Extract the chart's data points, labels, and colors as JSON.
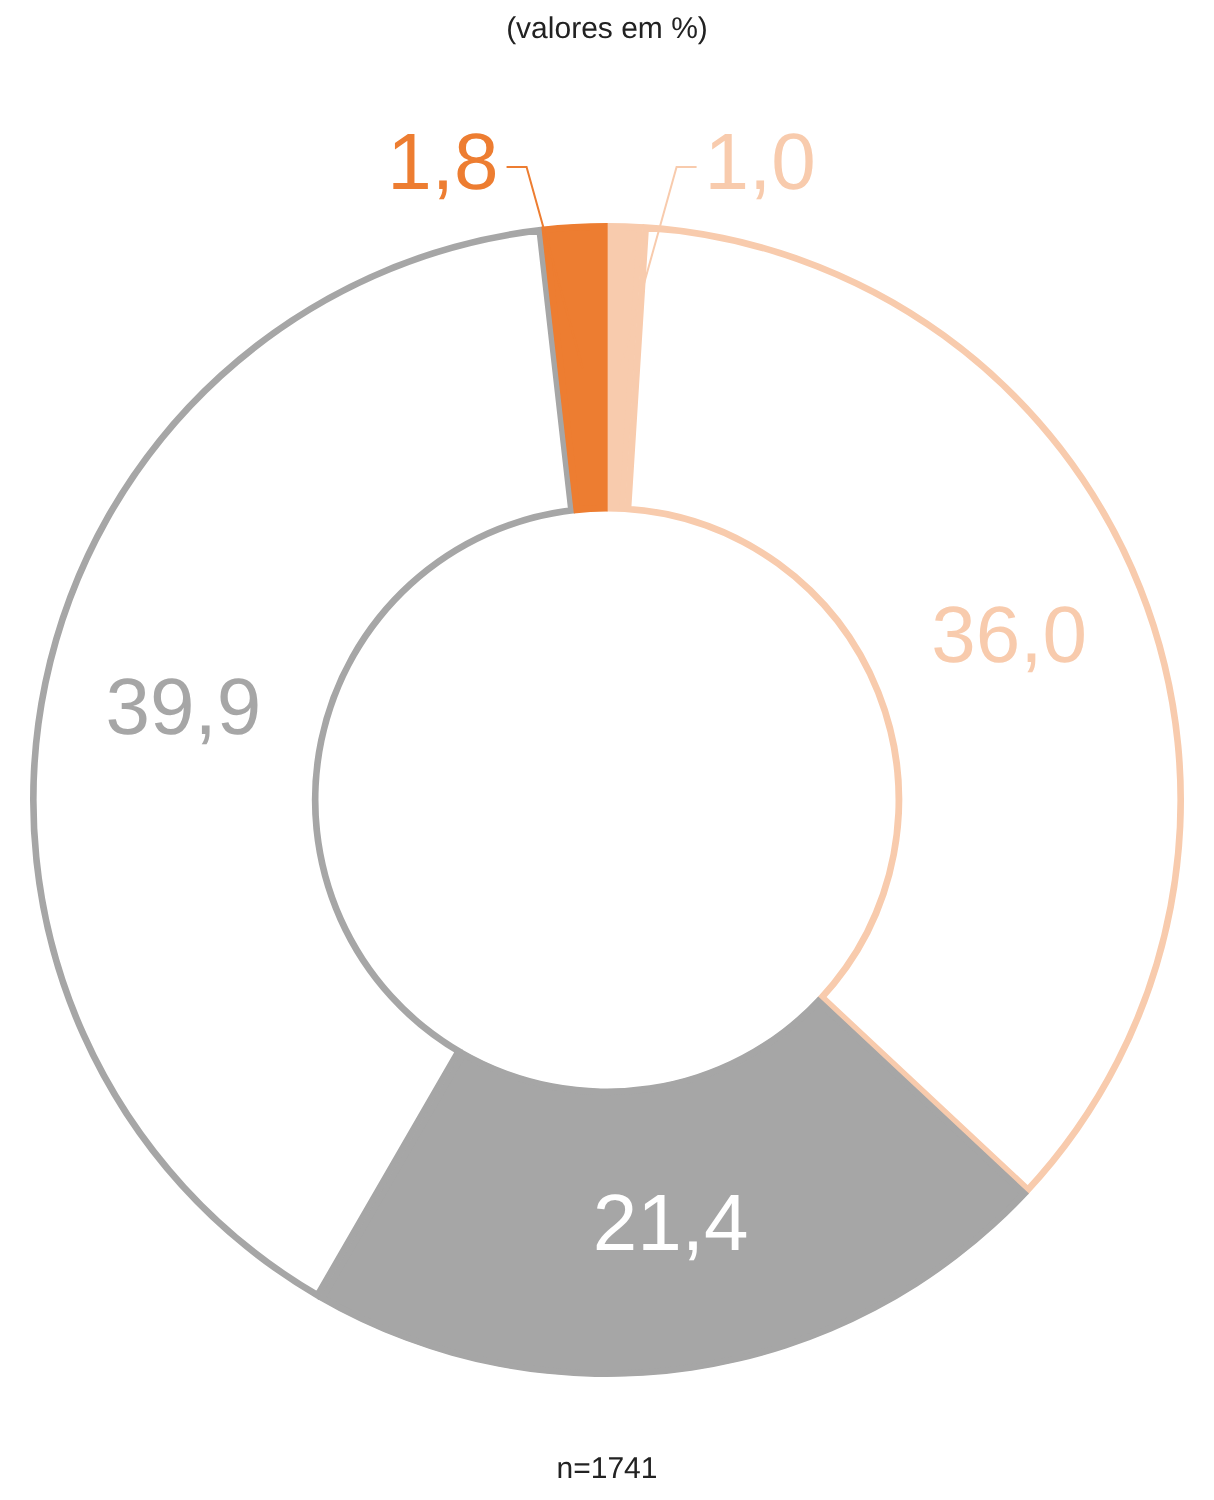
{
  "chart_data": {
    "type": "donut",
    "title": "(valores em %)",
    "categories": [
      null,
      null,
      null,
      null,
      null
    ],
    "values": [
      1.0,
      36.0,
      21.4,
      39.9,
      1.8
    ],
    "colors": [
      "#f8cbad",
      "#ffffff",
      "#a6a6a6",
      "#ffffff",
      "#ed7d31"
    ],
    "value_labels": [
      "1,0",
      "36,0",
      "21,4",
      "39,9",
      "1,8"
    ],
    "legend": false,
    "annotations": [
      "n=1741"
    ]
  }
}
